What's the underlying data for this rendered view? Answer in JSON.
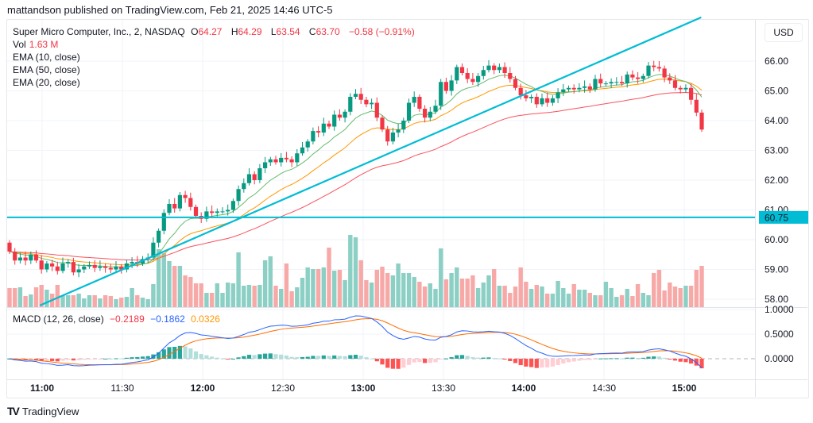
{
  "header": {
    "published": "mattandson published on TradingView.com, Feb 21, 2025 14:46 UTC-5"
  },
  "legend": {
    "symbol": "Super Micro Computer, Inc., 2, NASDAQ",
    "o_label": "O",
    "o": "64.27",
    "h_label": "H",
    "h": "64.29",
    "l_label": "L",
    "l": "63.54",
    "c_label": "C",
    "c": "63.70",
    "change": "−0.58 (−0.91%)",
    "vol_label": "Vol",
    "vol": "1.63 M",
    "ema10": "EMA (10, close)",
    "ema50": "EMA (50, close)",
    "ema20": "EMA (20, close)",
    "macd_label": "MACD (12, 26, close)",
    "macd_hist": "−0.2189",
    "macd_line": "−0.1862",
    "macd_signal": "0.0326"
  },
  "currency": "USD",
  "price_axis": [
    "66.00",
    "65.00",
    "64.00",
    "63.00",
    "62.00",
    "61.00",
    "60.00",
    "59.00",
    "58.00"
  ],
  "macd_axis": [
    "1.0000",
    "0.5000",
    "0.0000"
  ],
  "time_axis": [
    {
      "t": "11:00",
      "bold": true
    },
    {
      "t": "11:30",
      "bold": false
    },
    {
      "t": "12:00",
      "bold": true
    },
    {
      "t": "12:30",
      "bold": false
    },
    {
      "t": "13:00",
      "bold": true
    },
    {
      "t": "13:30",
      "bold": false
    },
    {
      "t": "14:00",
      "bold": true
    },
    {
      "t": "14:30",
      "bold": false
    },
    {
      "t": "15:00",
      "bold": true
    }
  ],
  "hline": {
    "price": 60.75,
    "label": "60.75",
    "color": "#00bcd4"
  },
  "colors": {
    "up": "#089981",
    "down": "#f23645",
    "ema10": "#66bb6a",
    "ema20": "#ff9800",
    "ema50": "#f7525f",
    "macd": "#2962ff",
    "signal": "#ff6d00",
    "trend": "#00bcd4"
  },
  "chart_data": {
    "type": "candlestick",
    "interval": "2 min",
    "first_bar_time": "10:48",
    "first_open": 59.9,
    "closes": [
      59.6,
      59.3,
      59.4,
      59.3,
      59.5,
      59.3,
      59.0,
      59.2,
      59.1,
      58.95,
      59.2,
      59.25,
      58.9,
      59.0,
      59.1,
      59.15,
      59.05,
      59.1,
      59.05,
      59.0,
      59.1,
      59.0,
      59.2,
      59.25,
      59.2,
      59.35,
      59.4,
      59.9,
      60.3,
      60.9,
      61.2,
      61.05,
      61.5,
      61.4,
      61.1,
      60.8,
      60.7,
      60.95,
      60.9,
      60.95,
      60.95,
      61.0,
      61.3,
      61.7,
      61.9,
      62.2,
      62.0,
      62.4,
      62.6,
      62.7,
      62.6,
      62.75,
      62.7,
      62.6,
      62.9,
      63.1,
      63.3,
      63.65,
      63.6,
      63.9,
      63.8,
      64.2,
      64.1,
      64.3,
      64.8,
      64.9,
      64.7,
      64.55,
      64.6,
      64.1,
      63.7,
      63.3,
      63.6,
      63.7,
      64.0,
      64.6,
      64.8,
      64.4,
      64.1,
      64.3,
      64.5,
      65.3,
      65.0,
      65.35,
      65.8,
      65.6,
      65.4,
      65.3,
      65.5,
      65.7,
      65.85,
      65.7,
      65.8,
      65.6,
      65.4,
      65.1,
      64.85,
      64.75,
      64.8,
      64.55,
      64.75,
      64.6,
      64.75,
      64.95,
      65.05,
      65.1,
      65.05,
      65.1,
      65.15,
      65.05,
      65.4,
      65.25,
      65.25,
      65.3,
      65.3,
      65.25,
      65.55,
      65.45,
      65.4,
      65.5,
      65.85,
      65.8,
      65.75,
      65.45,
      65.35,
      65.1,
      65.05,
      65.1,
      64.7,
      64.27,
      63.7
    ],
    "volumes_relative": [
      24,
      24,
      25,
      14,
      16,
      25,
      28,
      22,
      17,
      28,
      15,
      15,
      15,
      17,
      11,
      15,
      15,
      11,
      15,
      14,
      10,
      12,
      13,
      24,
      15,
      12,
      10,
      29,
      73,
      68,
      58,
      52,
      52,
      40,
      38,
      30,
      30,
      18,
      18,
      30,
      18,
      31,
      30,
      69,
      27,
      28,
      27,
      28,
      59,
      64,
      27,
      23,
      55,
      20,
      25,
      37,
      50,
      48,
      48,
      50,
      75,
      46,
      47,
      34,
      91,
      88,
      59,
      34,
      31,
      47,
      51,
      43,
      40,
      55,
      43,
      43,
      38,
      32,
      26,
      30,
      23,
      74,
      35,
      43,
      50,
      36,
      36,
      40,
      24,
      31,
      40,
      48,
      27,
      27,
      18,
      26,
      50,
      32,
      23,
      28,
      26,
      17,
      17,
      33,
      24,
      17,
      29,
      22,
      22,
      18,
      15,
      15,
      32,
      24,
      13,
      15,
      23,
      14,
      29,
      18,
      15,
      43,
      47,
      21,
      31,
      26,
      24,
      27,
      27,
      47,
      52
    ],
    "trendline": {
      "from": {
        "bar": 5.7,
        "price": 57.79
      },
      "to": {
        "bar": 129.9,
        "price": 67.47
      }
    },
    "ylim": [
      57.7,
      66.9
    ],
    "macd_ylim": [
      -0.3,
      1.0
    ]
  }
}
